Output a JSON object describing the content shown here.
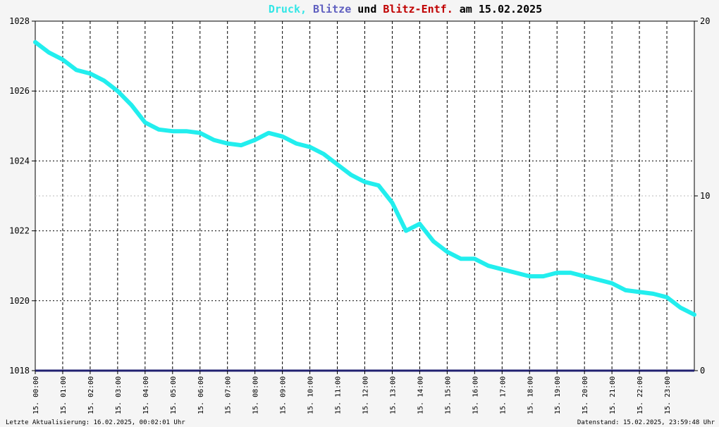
{
  "chart_data": {
    "type": "line",
    "title_parts": [
      {
        "text": "Druck",
        "color": "#33e6e6"
      },
      {
        "text": ", ",
        "color": "#33e6e6"
      },
      {
        "text": "Blitze",
        "color": "#6060c0"
      },
      {
        "text": " und ",
        "color": "#000000"
      },
      {
        "text": "Blitz-Entf.",
        "color": "#c00000"
      },
      {
        "text": " am 15.02.2025",
        "color": "#000000"
      }
    ],
    "left_axis": {
      "range": [
        1018,
        1028
      ],
      "ticks": [
        "1028",
        "1026",
        "1024",
        "1022",
        "1020",
        "1018"
      ]
    },
    "right_axis": {
      "range": [
        0,
        20
      ],
      "ticks": [
        "20",
        "10",
        "0"
      ],
      "mid_color": "#c00000"
    },
    "x_axis": {
      "range_hours": [
        0,
        24
      ],
      "tick_labels": [
        "15. 00:00",
        "15. 01:00",
        "15. 02:00",
        "15. 03:00",
        "15. 04:00",
        "15. 05:00",
        "15. 06:00",
        "15. 07:00",
        "15. 08:00",
        "15. 09:00",
        "15. 10:00",
        "15. 11:00",
        "15. 12:00",
        "15. 13:00",
        "15. 14:00",
        "15. 15:00",
        "15. 16:00",
        "15. 17:00",
        "15. 18:00",
        "15. 19:00",
        "15. 20:00",
        "15. 21:00",
        "15. 22:00",
        "15. 23:00"
      ]
    },
    "grid": true,
    "series": [
      {
        "color": "#22eeee",
        "x_hours": [
          0,
          0.5,
          1.0,
          1.5,
          2.0,
          2.5,
          3.0,
          3.5,
          4.0,
          4.5,
          5.0,
          5.5,
          6.0,
          6.5,
          7.0,
          7.5,
          8.0,
          8.5,
          9.0,
          9.5,
          10.0,
          10.5,
          11.0,
          11.5,
          12.0,
          12.5,
          13.0,
          13.5,
          14.0,
          14.5,
          15.0,
          15.5,
          16.0,
          16.5,
          17.0,
          17.5,
          18.0,
          18.5,
          19.0,
          19.5,
          20.0,
          20.5,
          21.0,
          21.5,
          22.0,
          22.5,
          23.0,
          23.5,
          24.0
        ],
        "values": [
          1027.4,
          1027.1,
          1026.9,
          1026.6,
          1026.5,
          1026.3,
          1026.0,
          1025.6,
          1025.1,
          1024.9,
          1024.85,
          1024.85,
          1024.8,
          1024.6,
          1024.5,
          1024.45,
          1024.6,
          1024.8,
          1024.7,
          1024.5,
          1024.4,
          1024.2,
          1023.9,
          1023.6,
          1023.4,
          1023.3,
          1022.8,
          1022.0,
          1022.2,
          1021.7,
          1021.4,
          1021.2,
          1021.2,
          1021.0,
          1020.9,
          1020.8,
          1020.7,
          1020.7,
          1020.8,
          1020.8,
          1020.7,
          1020.6,
          1020.5,
          1020.3,
          1020.25,
          1020.2,
          1020.1,
          1019.8,
          1019.6
        ]
      }
    ],
    "baseline": {
      "value": 1018,
      "color": "#202070"
    },
    "footer_left": "Letzte Aktualisierung: 16.02.2025, 00:02:01 Uhr",
    "footer_right": "Datenstand: 15.02.2025, 23:59:48 Uhr"
  }
}
